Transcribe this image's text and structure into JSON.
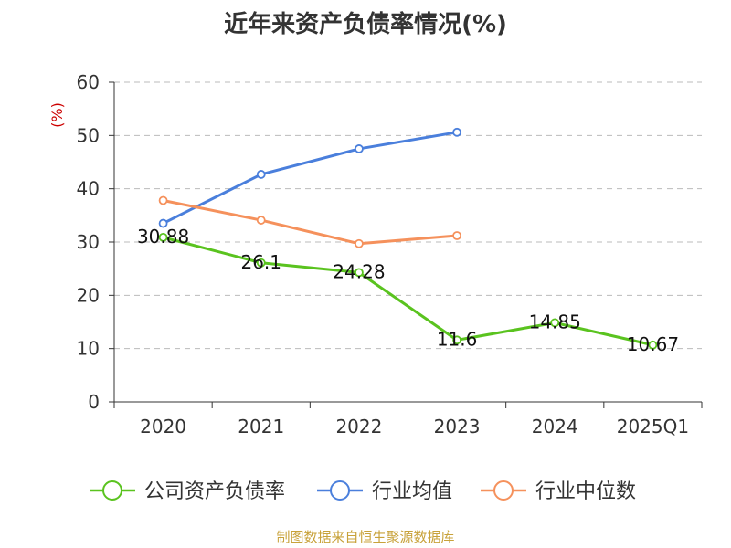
{
  "chart_data": {
    "type": "line",
    "title": "近年来资产负债率情况(%)",
    "ylabel": "(%)",
    "xlabel": "",
    "categories": [
      "2020",
      "2021",
      "2022",
      "2023",
      "2024",
      "2025Q1"
    ],
    "ylim": [
      0,
      60
    ],
    "yticks": [
      0,
      10,
      20,
      30,
      40,
      50,
      60
    ],
    "grid": true,
    "legend_position": "bottom",
    "series": [
      {
        "name": "公司资产负债率",
        "color": "#5ac31f",
        "values": [
          30.88,
          26.1,
          24.28,
          11.6,
          14.85,
          10.67
        ],
        "data_labels": [
          "30.88",
          "26.1",
          "24.28",
          "11.6",
          "14.85",
          "10.67"
        ]
      },
      {
        "name": "行业均值",
        "color": "#4a7fdc",
        "values": [
          33.5,
          42.7,
          47.5,
          50.6,
          null,
          null
        ]
      },
      {
        "name": "行业中位数",
        "color": "#f5915c",
        "values": [
          37.8,
          34.1,
          29.7,
          31.2,
          null,
          null
        ]
      }
    ]
  },
  "ytick_labels": [
    "0",
    "10",
    "20",
    "30",
    "40",
    "50",
    "60"
  ],
  "footer": {
    "source": "制图数据来自恒生聚源数据库"
  },
  "colors": {
    "axis": "#333333",
    "grid": "#bbbbbb",
    "ylabel": "#cc0000",
    "source": "#c8a23a"
  }
}
